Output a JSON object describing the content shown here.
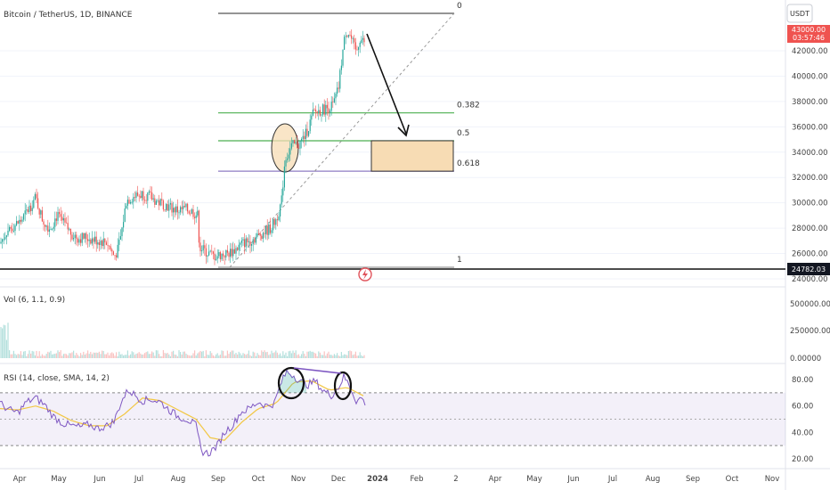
{
  "symbol_title": "Bitcoin / TetherUS, 1D, BINANCE",
  "currency_button": "USDT",
  "price_tag_top": "43000.00",
  "countdown_tag": "03:57:46",
  "current_price_tag": "24782.03",
  "colors": {
    "up": "#26a69a",
    "down": "#ef5350",
    "fib_green": "#4caf50",
    "fib_purple": "#8e7cc3",
    "rsi_line": "#7e57c2",
    "rsi_ma": "#f2c744",
    "target_box": "#f7dcb4"
  },
  "fib": {
    "level_0": "0",
    "level_382": "0.382",
    "level_5": "0.5",
    "level_618": "0.618",
    "level_1": "1"
  },
  "volume_pane": {
    "label": "Vol (6, 1.1, 0.9)",
    "ticks": [
      "500000.00000",
      "250000.00000",
      "0.00000"
    ]
  },
  "rsi_pane": {
    "label": "RSI (14, close, SMA, 14, 2)",
    "ticks": [
      "80.00",
      "60.00",
      "40.00",
      "20.00"
    ]
  },
  "chart_data": {
    "type": "candlestick",
    "price_axis_ticks": [
      "42000.00",
      "40000.00",
      "38000.00",
      "36000.00",
      "34000.00",
      "32000.00",
      "30000.00",
      "28000.00",
      "26000.00",
      "24000.00"
    ],
    "x_ticks": [
      "Apr",
      "May",
      "Jun",
      "Jul",
      "Aug",
      "Sep",
      "Oct",
      "Nov",
      "Dec",
      "2024",
      "Feb",
      "2",
      "Apr",
      "May",
      "Jun",
      "Jul",
      "Aug",
      "Sep",
      "Oct",
      "Nov"
    ],
    "close_path": [
      [
        0,
        26800
      ],
      [
        8,
        27800
      ],
      [
        16,
        28200
      ],
      [
        24,
        28600
      ],
      [
        32,
        29500
      ],
      [
        40,
        30400
      ],
      [
        48,
        28600
      ],
      [
        56,
        28000
      ],
      [
        64,
        29000
      ],
      [
        72,
        28300
      ],
      [
        80,
        27600
      ],
      [
        88,
        27200
      ],
      [
        96,
        27300
      ],
      [
        104,
        27100
      ],
      [
        112,
        27000
      ],
      [
        120,
        26900
      ],
      [
        128,
        25800
      ],
      [
        132,
        26200
      ],
      [
        136,
        27500
      ],
      [
        142,
        30200
      ],
      [
        150,
        30500
      ],
      [
        160,
        30700
      ],
      [
        168,
        30500
      ],
      [
        176,
        30100
      ],
      [
        184,
        29900
      ],
      [
        192,
        29600
      ],
      [
        200,
        29400
      ],
      [
        208,
        29500
      ],
      [
        216,
        29300
      ],
      [
        222,
        29000
      ],
      [
        224,
        26500
      ],
      [
        232,
        26100
      ],
      [
        240,
        25800
      ],
      [
        248,
        25900
      ],
      [
        256,
        26000
      ],
      [
        264,
        26300
      ],
      [
        272,
        26800
      ],
      [
        280,
        27000
      ],
      [
        288,
        27300
      ],
      [
        296,
        27700
      ],
      [
        304,
        28000
      ],
      [
        310,
        28700
      ],
      [
        316,
        30000
      ],
      [
        320,
        33500
      ],
      [
        328,
        34500
      ],
      [
        336,
        34600
      ],
      [
        344,
        35500
      ],
      [
        352,
        37100
      ],
      [
        360,
        37300
      ],
      [
        368,
        37500
      ],
      [
        374,
        37700
      ],
      [
        380,
        39000
      ],
      [
        384,
        41500
      ],
      [
        388,
        43500
      ],
      [
        392,
        43400
      ],
      [
        396,
        42600
      ],
      [
        400,
        41800
      ],
      [
        404,
        43000
      ],
      [
        408,
        42700
      ]
    ],
    "fib_levels": [
      {
        "level": "0",
        "price": 44200
      },
      {
        "level": "0.382",
        "price": 37100
      },
      {
        "level": "0.5",
        "price": 34900
      },
      {
        "level": "0.618",
        "price": 32500
      },
      {
        "level": "1",
        "price": 25100
      }
    ],
    "target_zone": {
      "price_low": 32500,
      "price_high": 34900
    },
    "rsi_path": [
      [
        0,
        62
      ],
      [
        10,
        57
      ],
      [
        20,
        55
      ],
      [
        30,
        63
      ],
      [
        40,
        66
      ],
      [
        50,
        61
      ],
      [
        60,
        52
      ],
      [
        70,
        47
      ],
      [
        80,
        45
      ],
      [
        90,
        44
      ],
      [
        100,
        46
      ],
      [
        110,
        43
      ],
      [
        120,
        45
      ],
      [
        128,
        48
      ],
      [
        136,
        63
      ],
      [
        144,
        72
      ],
      [
        152,
        68
      ],
      [
        160,
        64
      ],
      [
        170,
        65
      ],
      [
        180,
        63
      ],
      [
        190,
        57
      ],
      [
        200,
        52
      ],
      [
        210,
        50
      ],
      [
        220,
        45
      ],
      [
        226,
        26
      ],
      [
        234,
        24
      ],
      [
        244,
        30
      ],
      [
        252,
        40
      ],
      [
        262,
        46
      ],
      [
        270,
        55
      ],
      [
        280,
        58
      ],
      [
        290,
        63
      ],
      [
        300,
        60
      ],
      [
        308,
        62
      ],
      [
        316,
        78
      ],
      [
        322,
        86
      ],
      [
        330,
        83
      ],
      [
        338,
        78
      ],
      [
        346,
        76
      ],
      [
        354,
        79
      ],
      [
        362,
        72
      ],
      [
        372,
        68
      ],
      [
        380,
        74
      ],
      [
        386,
        82
      ],
      [
        392,
        76
      ],
      [
        400,
        64
      ],
      [
        406,
        66
      ],
      [
        410,
        62
      ]
    ],
    "rsi_ma_path": [
      [
        0,
        58
      ],
      [
        20,
        57
      ],
      [
        40,
        60
      ],
      [
        60,
        56
      ],
      [
        80,
        49
      ],
      [
        100,
        45
      ],
      [
        120,
        45
      ],
      [
        140,
        54
      ],
      [
        160,
        66
      ],
      [
        180,
        64
      ],
      [
        200,
        57
      ],
      [
        220,
        50
      ],
      [
        236,
        36
      ],
      [
        252,
        34
      ],
      [
        272,
        48
      ],
      [
        290,
        58
      ],
      [
        310,
        62
      ],
      [
        330,
        78
      ],
      [
        350,
        79
      ],
      [
        370,
        72
      ],
      [
        390,
        74
      ],
      [
        410,
        67
      ]
    ],
    "rsi_bands": {
      "upper": 70,
      "middle": 50,
      "lower": 30
    },
    "volume_ylim": [
      0,
      600000
    ]
  }
}
